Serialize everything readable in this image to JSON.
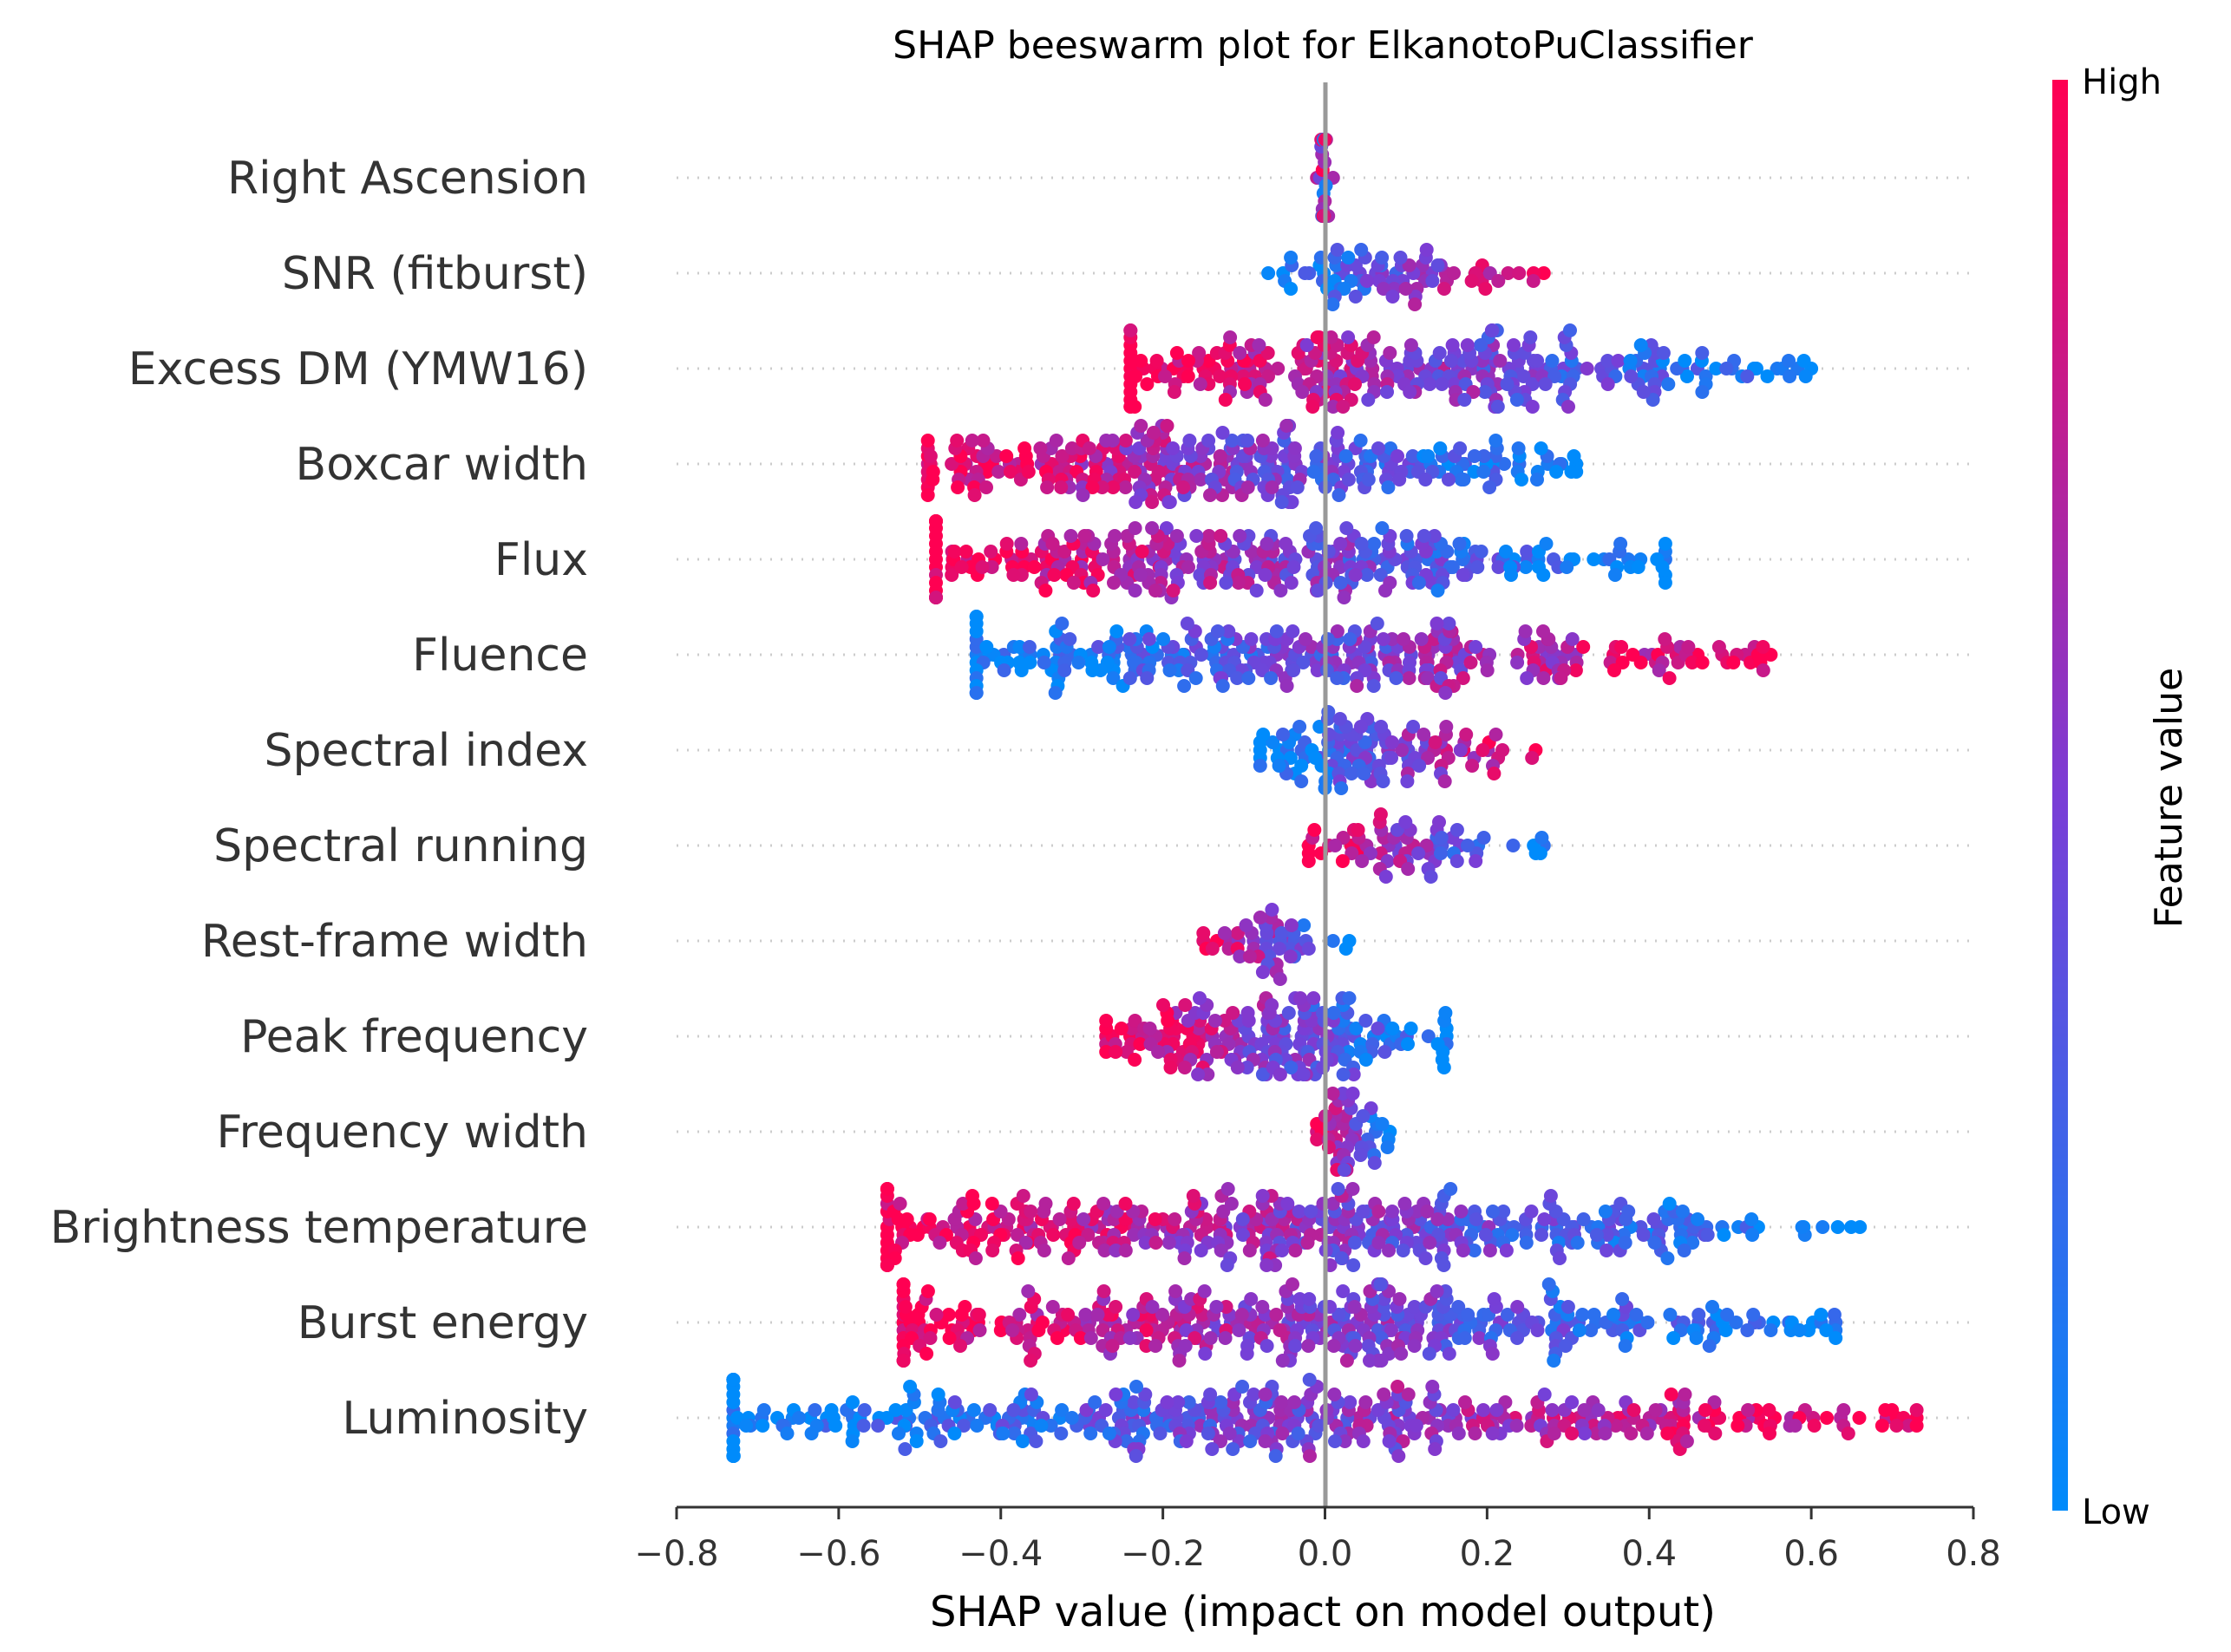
{
  "chart_data": {
    "type": "scatter",
    "subtype": "beeswarm",
    "title": "SHAP beeswarm plot for ElkanotoPuClassifier",
    "xlabel": "SHAP value (impact on model output)",
    "xlim": [
      -0.8,
      0.8
    ],
    "xticks": [
      "−0.8",
      "−0.6",
      "−0.4",
      "−0.2",
      "0.0",
      "0.2",
      "0.4",
      "0.6",
      "0.8"
    ],
    "colorbar": {
      "label": "Feature value",
      "high": "High",
      "low": "Low",
      "high_color": "#ff0052",
      "low_color": "#008bfb"
    },
    "grid": "dotted rows",
    "features": [
      {
        "name": "Right Ascension",
        "min": -0.01,
        "max": 0.01,
        "spread": 0.15,
        "pattern": "mixed",
        "count": 40
      },
      {
        "name": "SNR (fitburst)",
        "min": -0.07,
        "max": 0.27,
        "spread": 0.4,
        "pattern": "neg_low",
        "count": 80
      },
      {
        "name": "Excess DM (YMW16)",
        "min": -0.24,
        "max": 0.6,
        "spread": 0.55,
        "pattern": "neg_high",
        "count": 300
      },
      {
        "name": "Boxcar width",
        "min": -0.49,
        "max": 0.31,
        "spread": 0.55,
        "pattern": "neg_high",
        "count": 320
      },
      {
        "name": "Flux",
        "min": -0.48,
        "max": 0.42,
        "spread": 0.55,
        "pattern": "neg_high",
        "count": 320
      },
      {
        "name": "Fluence",
        "min": -0.43,
        "max": 0.55,
        "spread": 0.55,
        "pattern": "neg_low",
        "count": 320
      },
      {
        "name": "Spectral index",
        "min": -0.08,
        "max": 0.26,
        "spread": 0.45,
        "pattern": "neg_low",
        "count": 120
      },
      {
        "name": "Spectral running",
        "min": -0.02,
        "max": 0.27,
        "spread": 0.5,
        "pattern": "neg_high",
        "count": 70
      },
      {
        "name": "Rest-frame width",
        "min": -0.15,
        "max": 0.03,
        "spread": 0.4,
        "pattern": "neg_high",
        "count": 50
      },
      {
        "name": "Peak frequency",
        "min": -0.27,
        "max": 0.15,
        "spread": 0.55,
        "pattern": "neg_high",
        "count": 200
      },
      {
        "name": "Frequency width",
        "min": -0.01,
        "max": 0.08,
        "spread": 0.4,
        "pattern": "neg_high",
        "count": 50
      },
      {
        "name": "Brightness temperature",
        "min": -0.54,
        "max": 0.66,
        "spread": 0.55,
        "pattern": "neg_high",
        "count": 420
      },
      {
        "name": "Burst energy",
        "min": -0.52,
        "max": 0.63,
        "spread": 0.55,
        "pattern": "neg_high",
        "count": 400
      },
      {
        "name": "Luminosity",
        "min": -0.73,
        "max": 0.73,
        "spread": 0.55,
        "pattern": "neg_low",
        "count": 440
      }
    ]
  }
}
